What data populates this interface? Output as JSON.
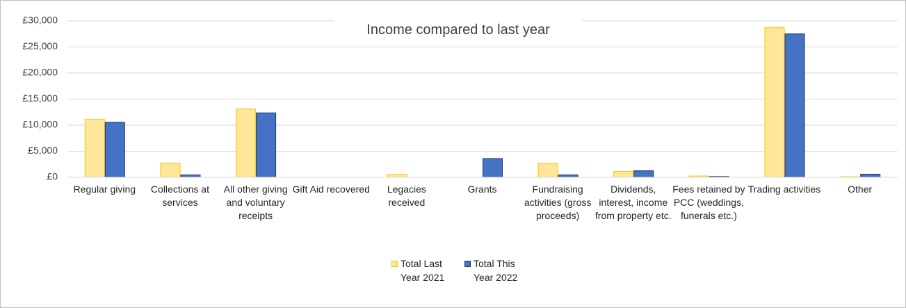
{
  "chart_data": {
    "type": "bar",
    "title": "Income compared to last year",
    "categories": [
      "Regular giving",
      "Collections at services",
      "All other giving and voluntary receipts",
      "Gift Aid recovered",
      "Legacies received",
      "Grants",
      "Fundraising activities (gross proceeds)",
      "Dividends, interest, income from property etc.",
      "Fees retained by PCC (weddings, funerals etc.)",
      "Trading activities",
      "Other"
    ],
    "series": [
      {
        "name": "Total Last Year 2021",
        "color": "#ffe699",
        "edgecolor": "#ffc000",
        "values": [
          11100,
          2700,
          13100,
          0,
          550,
          0,
          2600,
          1150,
          250,
          28700,
          100
        ]
      },
      {
        "name": "Total This Year 2022",
        "color": "#4472c4",
        "edgecolor": "#203864",
        "values": [
          10550,
          450,
          12350,
          0,
          0,
          3600,
          450,
          1250,
          150,
          27500,
          600
        ]
      }
    ],
    "ylim": [
      0,
      30000
    ],
    "yticks": [
      {
        "value": 0,
        "label": "£0"
      },
      {
        "value": 5000,
        "label": "£5,000"
      },
      {
        "value": 10000,
        "label": "£10,000"
      },
      {
        "value": 15000,
        "label": "£15,000"
      },
      {
        "value": 20000,
        "label": "£20,000"
      },
      {
        "value": 25000,
        "label": "£25,000"
      },
      {
        "value": 30000,
        "label": "£30,000"
      }
    ],
    "grid": true,
    "legend": "bottom"
  }
}
